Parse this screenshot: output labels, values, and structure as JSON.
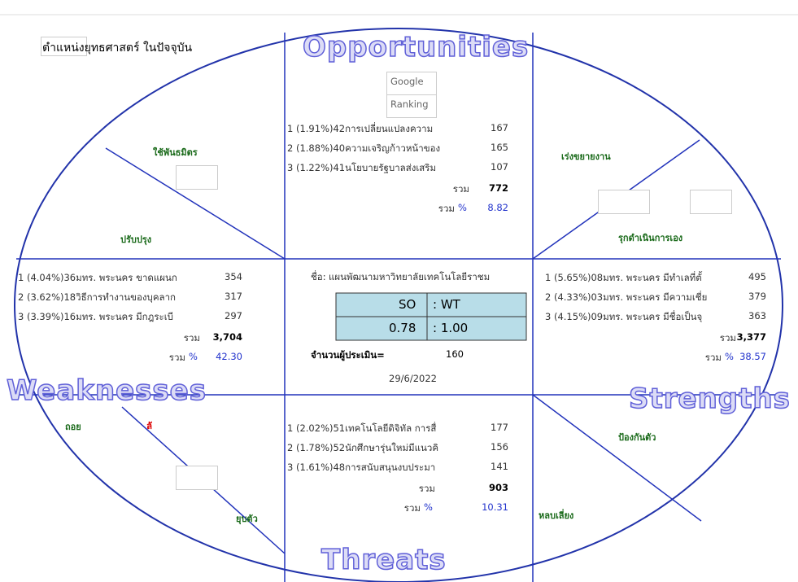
{
  "position_label": "ตำแหน่งยุทธศาสตร์ ในปัจจุบัน",
  "titles": {
    "opportunities": "Opportunities",
    "weaknesses": "Weaknesses",
    "strengths": "Strengths",
    "threats": "Threats"
  },
  "strategies": {
    "tl_top": "ใช้พันธมิตร",
    "tl_bottom": "ปรับปรุง",
    "tr_top": "เร่งขยายงาน",
    "tr_bottom": "รุกดำเนินการเอง",
    "bl_top": "ถอย",
    "bl_red": "ลั",
    "bl_bottom": "ยุบตัว",
    "br_top": "ป้องกันตัว",
    "br_bottom": "หลบเลี่ยง"
  },
  "opportunities": {
    "header": [
      "Google",
      "Ranking"
    ],
    "items": [
      [
        "1 (1.91%)42การเปลี่ยนแปลงความ",
        "167"
      ],
      [
        "2 (1.88%)40ความเจริญก้าวหน้าของ",
        "165"
      ],
      [
        "3 (1.22%)41นโยบายรัฐบาลส่งเสริม",
        "107"
      ]
    ],
    "total_label": "รวม",
    "total": "772",
    "percent_label": "%",
    "percent": "8.82"
  },
  "weaknesses": {
    "items": [
      [
        "1 (4.04%)36มทร. พระนคร ขาดแผนก",
        "354"
      ],
      [
        "2 (3.62%)18วิธีการทำงานของบุคลาก",
        "317"
      ],
      [
        "3 (3.39%)16มทร. พระนคร มีกฎระเบี",
        "297"
      ]
    ],
    "total_label": "รวม",
    "total": "3,704",
    "percent_label": "%",
    "percent": "42.30"
  },
  "strengths": {
    "items": [
      [
        "1 (5.65%)08มทร. พระนคร มีทำเลที่ตั้",
        "495"
      ],
      [
        "2 (4.33%)03มทร. พระนคร มีความเชี่ย",
        "379"
      ],
      [
        "3 (4.15%)09มทร. พระนคร มีชื่อเป็นจุ",
        "363"
      ]
    ],
    "total_label": "รวม",
    "total": "3,377",
    "percent_label": "%",
    "percent": "38.57"
  },
  "threats": {
    "items": [
      [
        "1 (2.02%)51เทคโนโลยีดิจิทัล การสื่",
        "177"
      ],
      [
        "2 (1.78%)52นักศึกษารุ่นใหม่มีแนวคิ",
        "156"
      ],
      [
        "3 (1.61%)48การสนับสนุนงบประมา",
        "141"
      ]
    ],
    "total_label": "รวม",
    "total": "903",
    "percent_label": "%",
    "percent": "10.31"
  },
  "center": {
    "name_label": "ชื่อ:",
    "name": "แผนพัฒนามหาวิทยาลัยเทคโนโลยีราชม",
    "ratio_left_label": "SO",
    "ratio_right_label": ": WT",
    "ratio_left": "0.78",
    "ratio_right": ": 1.00",
    "raters_label": "จำนวนผู้ประเมิน=",
    "raters": "160",
    "date": "29/6/2022"
  }
}
